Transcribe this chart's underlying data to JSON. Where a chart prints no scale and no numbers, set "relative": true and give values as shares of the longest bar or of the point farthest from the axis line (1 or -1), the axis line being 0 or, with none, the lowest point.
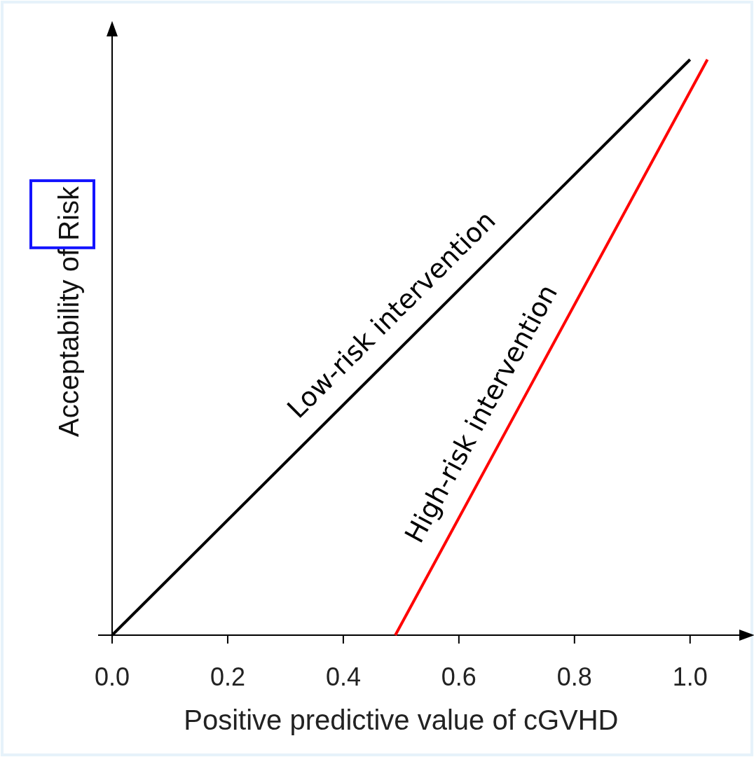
{
  "chart_data": {
    "type": "line",
    "relative": true,
    "xlabel": "Positive predictive value of cGVHD",
    "ylabel": "Acceptability of Risk",
    "xlim": [
      0,
      1.09
    ],
    "xticks": [
      {
        "value": 0,
        "label": "0.0"
      },
      0.2,
      0.4,
      0.6,
      0.8,
      {
        "value": 1,
        "label": "1.0"
      }
    ],
    "series": [
      {
        "color": "#000000",
        "x": [
          0,
          1
        ],
        "values": [
          0,
          1
        ]
      },
      {
        "color": "#ff0000",
        "x": [
          0.49,
          1.03
        ],
        "values": [
          0,
          1
        ]
      }
    ],
    "annotations": [
      "Low-risk intervention",
      "High-risk intervention"
    ],
    "grid": false,
    "marker": "none",
    "line_style": "solid"
  }
}
